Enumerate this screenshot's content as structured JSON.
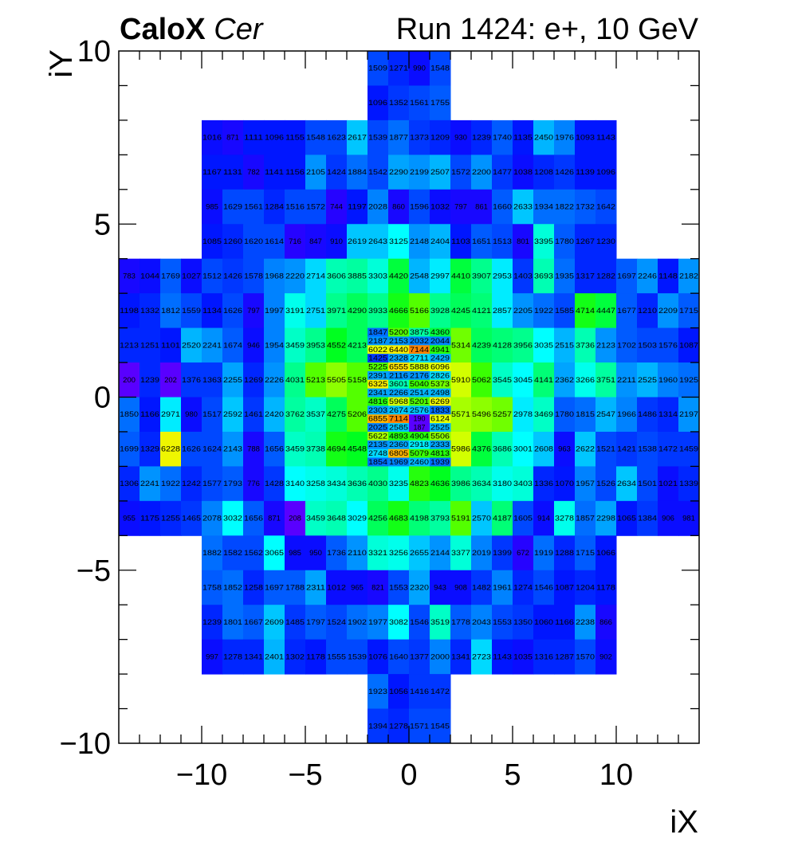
{
  "chart_data": {
    "type": "heatmap",
    "title_left_bold": "CaloX",
    "title_left_italic": "Cer",
    "title_right": "Run 1424: e+, 10 GeV",
    "xlabel": "iX",
    "ylabel": "iY",
    "xlim": [
      -14,
      14
    ],
    "ylim": [
      -10,
      10
    ],
    "xticks": [
      "−10",
      "−5",
      "0",
      "5",
      "10"
    ],
    "yticks": [
      "−10",
      "−5",
      "0",
      "5",
      "10"
    ],
    "xtick_values": [
      -10,
      -5,
      0,
      5,
      10
    ],
    "ytick_values": [
      -10,
      -5,
      0,
      5,
      10
    ],
    "zlim": [
      0,
      7500
    ],
    "palette": [
      "#6a00ff",
      "#3000ff",
      "#0010ff",
      "#0048ff",
      "#0088ff",
      "#00c0ff",
      "#00ffff",
      "#00ffc0",
      "#00ff80",
      "#00ff20",
      "#40ff00",
      "#a0ff00",
      "#e8ff00",
      "#ffe000",
      "#ff8800",
      "#ff5500"
    ],
    "blocks": [
      {
        "y": 9,
        "h": 1,
        "x0": -2,
        "values": [
          1509,
          1271,
          990,
          1548
        ]
      },
      {
        "y": 8,
        "h": 1,
        "x0": -2,
        "values": [
          1096,
          1352,
          1561,
          1755
        ]
      },
      {
        "y": 7,
        "h": 1,
        "x0": -10,
        "values": [
          1016,
          871,
          1111,
          1096,
          1155,
          1548,
          1623,
          2617,
          1539,
          1877,
          1373,
          1209,
          930,
          1239,
          1740,
          1135,
          2450,
          1976,
          1093,
          1143
        ]
      },
      {
        "y": 6,
        "h": 1,
        "x0": -10,
        "values": [
          1167,
          1131,
          782,
          1141,
          1156,
          2105,
          1424,
          1884,
          1542,
          2290,
          2199,
          2507,
          1572,
          2200,
          1477,
          1038,
          1208,
          1426,
          1139,
          1096
        ]
      },
      {
        "y": 5,
        "h": 1,
        "x0": -10,
        "values": [
          985,
          1629,
          1561,
          1284,
          1516,
          1572,
          744,
          1197,
          2028,
          860,
          1596,
          1032,
          797,
          861,
          1660,
          2633,
          1934,
          1822,
          1732,
          1642
        ]
      },
      {
        "y": 4,
        "h": 1,
        "x0": -10,
        "values": [
          1085,
          1260,
          1620,
          1614,
          716,
          847,
          910,
          2619,
          2643,
          3125,
          2148,
          2404,
          1103,
          1651,
          1513,
          801,
          3395,
          1780,
          1267,
          1230
        ]
      },
      {
        "y": 3,
        "h": 1,
        "x0": -14,
        "values": [
          783,
          1044,
          1769,
          1027,
          1512,
          1426,
          1578,
          1968,
          2220,
          2714,
          3606,
          3885,
          3303,
          4420,
          2548,
          2997,
          4410,
          3907,
          2953,
          1403,
          3693,
          1935,
          1317,
          1282,
          1697,
          2246,
          1148,
          2182
        ]
      },
      {
        "y": 2,
        "h": 1,
        "x0": -14,
        "values": [
          1198,
          1332,
          1812,
          1559,
          1134,
          1626,
          797,
          1997,
          3191,
          2751,
          3971,
          4290,
          3933,
          4666,
          5166,
          3928,
          4245,
          4121,
          2857,
          2205,
          1922,
          1585,
          4714,
          4447,
          1677,
          1210,
          2209,
          1715
        ]
      },
      {
        "y": 1,
        "h": 1,
        "x0": -14,
        "values": [
          1213,
          1251,
          1101,
          2520,
          2241,
          1674,
          946,
          1954,
          3459,
          3953,
          4552,
          4213
        ]
      },
      {
        "y": 1,
        "h": 1,
        "x0": 2,
        "values": [
          5314,
          4239,
          4128,
          3956,
          3035,
          2515,
          3736,
          2123,
          1702,
          1503,
          1576,
          1087
        ]
      },
      {
        "y": 0,
        "h": 1,
        "x0": -14,
        "values": [
          200,
          1239,
          202,
          1376,
          1363,
          2255,
          1269,
          2226,
          4031,
          5213,
          5505,
          5158
        ]
      },
      {
        "y": 0,
        "h": 1,
        "x0": 2,
        "values": [
          5910,
          5062,
          3545,
          3045,
          4141,
          2362,
          3266,
          3751,
          2211,
          2525,
          1960,
          1925
        ]
      },
      {
        "y": -1,
        "h": 1,
        "x0": -14,
        "values": [
          1850,
          1166,
          2971,
          980,
          1517,
          2592,
          1461,
          2420,
          3762,
          3537,
          4275,
          5206
        ]
      },
      {
        "y": -1,
        "h": 1,
        "x0": 2,
        "values": [
          5571,
          5496,
          5257,
          2978,
          3469,
          1780,
          1815,
          2547,
          1966,
          1486,
          1314,
          2197
        ]
      },
      {
        "y": -2,
        "h": 1,
        "x0": -14,
        "values": [
          1699,
          1329,
          6228,
          1626,
          1624,
          2143,
          788,
          1656,
          3459,
          3738,
          4694,
          4548
        ]
      },
      {
        "y": -2,
        "h": 1,
        "x0": 2,
        "values": [
          5986,
          4376,
          3686,
          3001,
          2608,
          963,
          2622,
          1521,
          1421,
          1538,
          1472,
          1459
        ]
      },
      {
        "y": 1.75,
        "h": 0.25,
        "x0": -2,
        "values": [
          1847,
          5200,
          3875,
          4360
        ]
      },
      {
        "y": 1.5,
        "h": 0.25,
        "x0": -2,
        "values": [
          2187,
          2153,
          2032,
          2044
        ]
      },
      {
        "y": 1.25,
        "h": 0.25,
        "x0": -2,
        "values": [
          6022,
          6440,
          7144,
          4941
        ]
      },
      {
        "y": 1.0,
        "h": 0.25,
        "x0": -2,
        "values": [
          1425,
          2328,
          2711,
          2429
        ]
      },
      {
        "y": 0.75,
        "h": 0.25,
        "x0": -2,
        "values": [
          5225,
          6555,
          5888,
          6096
        ]
      },
      {
        "y": 0.5,
        "h": 0.25,
        "x0": -2,
        "values": [
          2391,
          2116,
          2176,
          2826
        ]
      },
      {
        "y": 0.25,
        "h": 0.25,
        "x0": -2,
        "values": [
          6325,
          3601,
          5040,
          5373
        ]
      },
      {
        "y": 0.0,
        "h": 0.25,
        "x0": -2,
        "values": [
          2341,
          2266,
          2514,
          2498
        ]
      },
      {
        "y": -0.25,
        "h": 0.25,
        "x0": -2,
        "values": [
          4816,
          5968,
          5201,
          6269
        ]
      },
      {
        "y": -0.5,
        "h": 0.25,
        "x0": -2,
        "values": [
          2303,
          2674,
          2576,
          1833
        ]
      },
      {
        "y": -0.75,
        "h": 0.25,
        "x0": -2,
        "values": [
          6855,
          7114,
          190,
          6124
        ]
      },
      {
        "y": -1.0,
        "h": 0.25,
        "x0": -2,
        "values": [
          2025,
          2585,
          187,
          2525
        ]
      },
      {
        "y": -1.25,
        "h": 0.25,
        "x0": -2,
        "values": [
          5622,
          4893,
          4904,
          5506
        ]
      },
      {
        "y": -1.5,
        "h": 0.25,
        "x0": -2,
        "values": [
          2135,
          2360,
          2918,
          2333
        ]
      },
      {
        "y": -1.75,
        "h": 0.25,
        "x0": -2,
        "values": [
          2748,
          6805,
          5079,
          4813
        ]
      },
      {
        "y": -2.0,
        "h": 0.25,
        "x0": -2,
        "values": [
          1854,
          1969,
          2460,
          1939
        ]
      },
      {
        "y": -3,
        "h": 1,
        "x0": -14,
        "values": [
          1306,
          2241,
          1922,
          1242,
          1577,
          1793,
          776,
          1428,
          3140,
          3258,
          3434,
          3636,
          4030,
          3235,
          4823,
          4636,
          3986,
          3634,
          3180,
          3403,
          1336,
          1070,
          1957,
          1526,
          2634,
          1501,
          1021,
          1339
        ]
      },
      {
        "y": -4,
        "h": 1,
        "x0": -14,
        "values": [
          955,
          1175,
          1255,
          1465,
          2078,
          3032,
          1656,
          871,
          208,
          3459,
          3648,
          3029,
          4256,
          4683,
          4198,
          3793,
          5191,
          2570,
          4187,
          1605,
          914,
          3278,
          1857,
          2298,
          1065,
          1384,
          906,
          981
        ]
      },
      {
        "y": -5,
        "h": 1,
        "x0": -10,
        "values": [
          1882,
          1582,
          1562,
          3065,
          985,
          950,
          1736,
          2110,
          3321,
          3256,
          2655,
          2144,
          3377,
          2019,
          1399,
          672,
          1919,
          1288,
          1715,
          1066
        ]
      },
      {
        "y": -6,
        "h": 1,
        "x0": -10,
        "values": [
          1758,
          1852,
          1258,
          1697,
          1788,
          2311,
          1012,
          965,
          821,
          1553,
          2320,
          943,
          908,
          1482,
          1961,
          1274,
          1546,
          1087,
          1204,
          1178
        ]
      },
      {
        "y": -7,
        "h": 1,
        "x0": -10,
        "values": [
          1239,
          1801,
          1667,
          2609,
          1485,
          1797,
          1524,
          1902,
          1977,
          3082,
          1546,
          3519,
          1778,
          2043,
          1553,
          1350,
          1060,
          1166,
          2238,
          866
        ]
      },
      {
        "y": -8,
        "h": 1,
        "x0": -10,
        "values": [
          997,
          1278,
          1341,
          2401,
          1302,
          1178,
          1555,
          1539,
          1076,
          1640,
          1377,
          2000,
          1341,
          2723,
          1143,
          1035,
          1316,
          1287,
          1570,
          902
        ]
      },
      {
        "y": -9,
        "h": 1,
        "x0": -2,
        "values": [
          1923,
          1056,
          1416,
          1472
        ]
      },
      {
        "y": -10,
        "h": 1,
        "x0": -2,
        "values": [
          1394,
          1278,
          1571,
          1545
        ]
      }
    ]
  }
}
